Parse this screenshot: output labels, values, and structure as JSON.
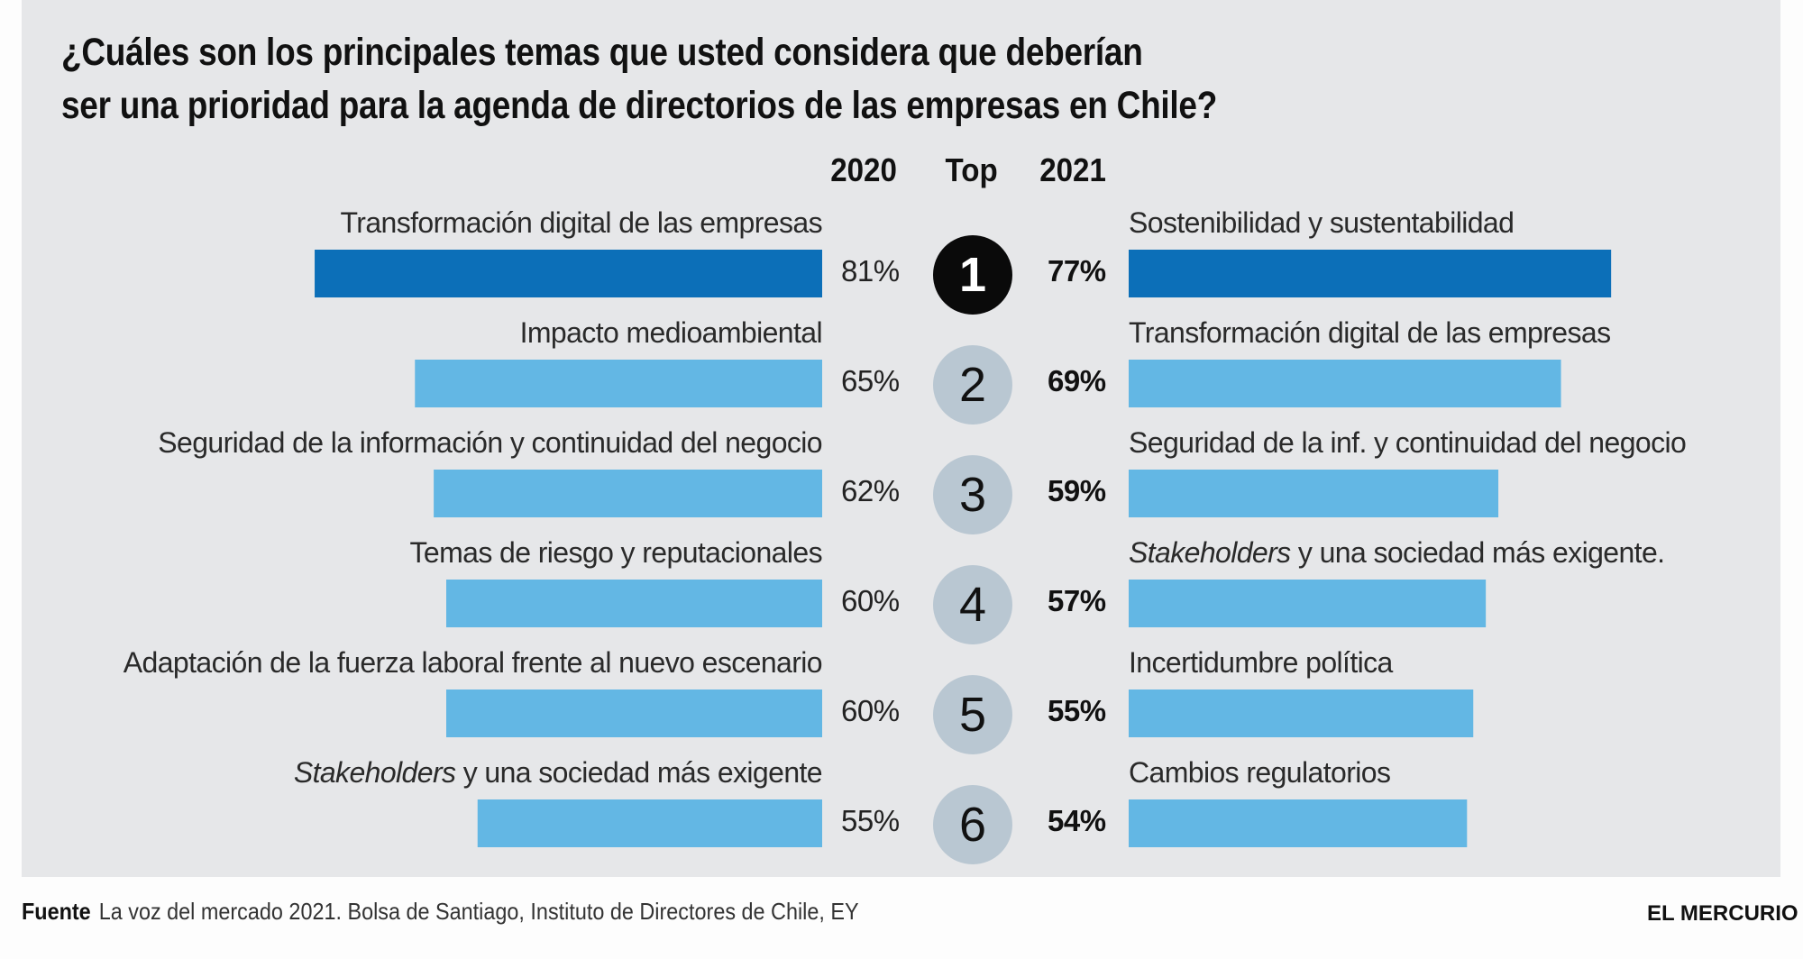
{
  "chart_data": {
    "type": "bar",
    "title": "¿Cuáles son los principales temas que usted considera que deberían ser una prioridad para la agenda de directorios de las empresas en Chile?",
    "title_lines": [
      "¿Cuáles son los principales temas que usted considera que deberían",
      "ser una prioridad para la agenda de directorios de las empresas en Chile?"
    ],
    "headers": {
      "left": "2020",
      "center": "Top",
      "right": "2021"
    },
    "unit": "%",
    "ranks": [
      "1",
      "2",
      "3",
      "4",
      "5",
      "6"
    ],
    "series": [
      {
        "name": "2020",
        "categories": [
          "Transformación digital de las empresas",
          "Impacto medioambiental",
          "Seguridad de la información y continuidad del negocio",
          "Temas de riesgo y reputacionales",
          "Adaptación de la fuerza laboral frente al nuevo escenario",
          "Stakeholders y una sociedad más exigente"
        ],
        "italic_prefix": [
          "",
          "",
          "",
          "",
          "",
          "Stakeholders"
        ],
        "values": [
          81,
          65,
          62,
          60,
          60,
          55
        ],
        "labels": [
          "81%",
          "65%",
          "62%",
          "60%",
          "60%",
          "55%"
        ]
      },
      {
        "name": "2021",
        "categories": [
          "Sostenibilidad y sustentabilidad",
          "Transformación digital de las empresas",
          "Seguridad de la inf. y continuidad del negocio",
          "Stakeholders y una sociedad más exigente.",
          "Incertidumbre política",
          "Cambios regulatorios"
        ],
        "italic_prefix": [
          "",
          "",
          "",
          "Stakeholders",
          "",
          ""
        ],
        "values": [
          77,
          69,
          59,
          57,
          55,
          54
        ],
        "labels": [
          "77%",
          "69%",
          "59%",
          "57%",
          "55%",
          "54%"
        ]
      }
    ],
    "xlim": [
      0,
      100
    ],
    "colors": {
      "top": "#0c6fb8",
      "rest": "#63b7e4",
      "rank_top": "#0a0a0a",
      "rank_rest": "#b9c7d2"
    },
    "source_label": "Fuente",
    "source": "La voz del mercado 2021. Bolsa de Santiago, Instituto de Directores de Chile, EY"
  },
  "branding": {
    "logo": "EL MERCURIO"
  }
}
